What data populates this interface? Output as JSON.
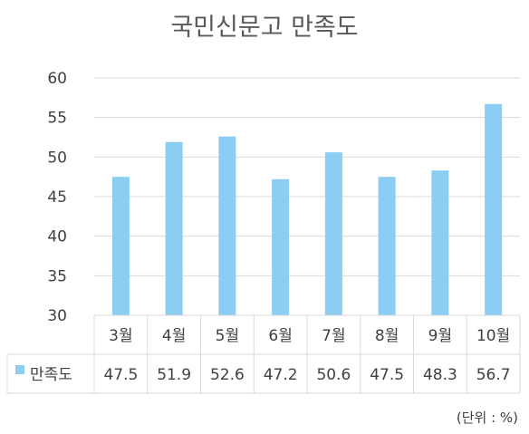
{
  "chart_data": {
    "type": "bar",
    "title": "국민신문고 만족도",
    "categories": [
      "3월",
      "4월",
      "5월",
      "6월",
      "7월",
      "8월",
      "9월",
      "10월"
    ],
    "series": [
      {
        "name": "만족도",
        "values": [
          47.5,
          51.9,
          52.6,
          47.2,
          50.6,
          47.5,
          48.3,
          56.7
        ]
      }
    ],
    "data_labels": [
      "47.5",
      "51.9",
      "52.6",
      "47.2",
      "50.6",
      "47.5",
      "48.3",
      "56.7"
    ],
    "ylim": [
      30,
      60
    ],
    "yticks": [
      30,
      35,
      40,
      45,
      50,
      55,
      60
    ],
    "grid": true,
    "data_table": true,
    "bar_color": "#8ccdf4",
    "unit_note": "(단위 : %)"
  }
}
